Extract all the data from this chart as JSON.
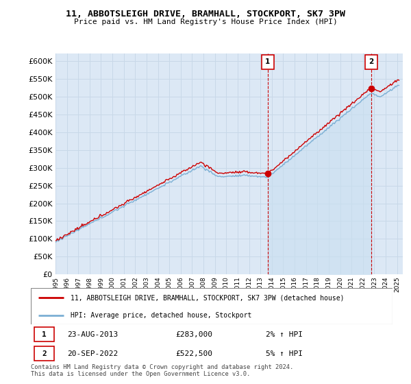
{
  "title1": "11, ABBOTSLEIGH DRIVE, BRAMHALL, STOCKPORT, SK7 3PW",
  "title2": "Price paid vs. HM Land Registry's House Price Index (HPI)",
  "ylim": [
    0,
    620000
  ],
  "yticks": [
    0,
    50000,
    100000,
    150000,
    200000,
    250000,
    300000,
    350000,
    400000,
    450000,
    500000,
    550000,
    600000
  ],
  "bg_color": "#ffffff",
  "plot_bg_color": "#dce8f5",
  "grid_color": "#c8d8e8",
  "hpi_color": "#7bafd4",
  "price_color": "#cc0000",
  "sale1_x": 2013.64,
  "sale1_y": 283000,
  "sale2_x": 2022.72,
  "sale2_y": 522500,
  "legend_line1": "11, ABBOTSLEIGH DRIVE, BRAMHALL, STOCKPORT, SK7 3PW (detached house)",
  "legend_line2": "HPI: Average price, detached house, Stockport",
  "table_row1": [
    "1",
    "23-AUG-2013",
    "£283,000",
    "2% ↑ HPI"
  ],
  "table_row2": [
    "2",
    "20-SEP-2022",
    "£522,500",
    "5% ↑ HPI"
  ],
  "footer": "Contains HM Land Registry data © Crown copyright and database right 2024.\nThis data is licensed under the Open Government Licence v3.0.",
  "xmin": 1995,
  "xmax": 2025.5
}
